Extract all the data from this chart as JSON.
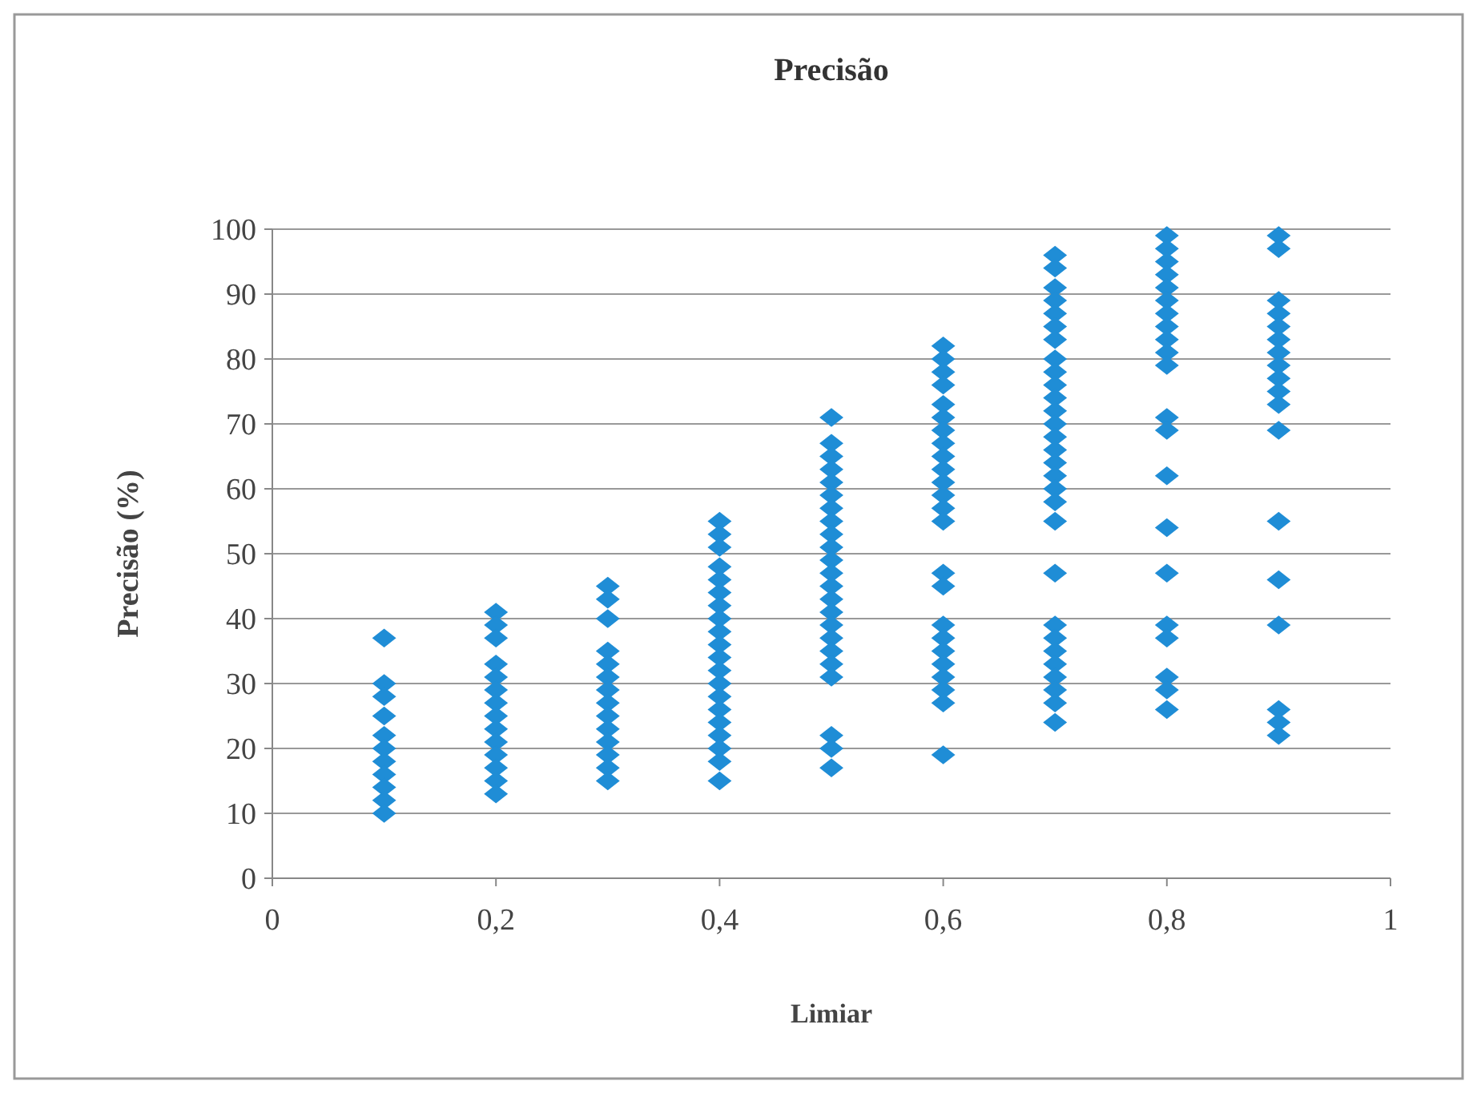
{
  "chart_data": {
    "type": "scatter",
    "title": "Precisão",
    "xlabel": "Limiar",
    "ylabel": "Precisão (%)",
    "xlim": [
      0,
      1
    ],
    "xticks": [
      0,
      {
        "value": 0.2,
        "label": "0,2"
      },
      {
        "value": 0.4,
        "label": "0,4"
      },
      {
        "value": 0.6,
        "label": "0,6"
      },
      {
        "value": 0.8,
        "label": "0,8"
      },
      1
    ],
    "ylim": [
      0,
      100
    ],
    "yticks": [
      0,
      10,
      20,
      30,
      40,
      50,
      60,
      70,
      80,
      90,
      100
    ],
    "grid": "y",
    "marker": "diamond",
    "series": [
      {
        "color": "#1f8dd6",
        "x": [
          0.1,
          0.1,
          0.1,
          0.1,
          0.1,
          0.1,
          0.1,
          0.1,
          0.1,
          0.1,
          0.1
        ],
        "values": [
          37,
          30,
          28,
          25,
          22,
          20,
          18,
          16,
          14,
          12,
          10
        ]
      },
      {
        "color": "#1f8dd6",
        "x": [
          0.2,
          0.2,
          0.2,
          0.2,
          0.2,
          0.2,
          0.2,
          0.2,
          0.2,
          0.2,
          0.2,
          0.2,
          0.2,
          0.2
        ],
        "values": [
          41,
          39,
          37,
          33,
          31,
          29,
          27,
          25,
          23,
          21,
          19,
          17,
          15,
          13
        ]
      },
      {
        "color": "#1f8dd6",
        "x": [
          0.3,
          0.3,
          0.3,
          0.3,
          0.3,
          0.3,
          0.3,
          0.3,
          0.3,
          0.3,
          0.3,
          0.3,
          0.3,
          0.3
        ],
        "values": [
          45,
          43,
          40,
          35,
          33,
          31,
          29,
          27,
          25,
          23,
          21,
          19,
          17,
          15
        ]
      },
      {
        "color": "#1f8dd6",
        "x": [
          0.4,
          0.4,
          0.4,
          0.4,
          0.4,
          0.4,
          0.4,
          0.4,
          0.4,
          0.4,
          0.4,
          0.4,
          0.4,
          0.4,
          0.4,
          0.4,
          0.4,
          0.4,
          0.4,
          0.4
        ],
        "values": [
          55,
          53,
          51,
          48,
          46,
          44,
          42,
          40,
          38,
          36,
          34,
          32,
          30,
          28,
          26,
          24,
          22,
          20,
          18,
          15
        ]
      },
      {
        "color": "#1f8dd6",
        "x": [
          0.5,
          0.5,
          0.5,
          0.5,
          0.5,
          0.5,
          0.5,
          0.5,
          0.5,
          0.5,
          0.5,
          0.5,
          0.5,
          0.5,
          0.5,
          0.5,
          0.5,
          0.5,
          0.5,
          0.5,
          0.5,
          0.5,
          0.5
        ],
        "values": [
          71,
          67,
          65,
          63,
          61,
          59,
          57,
          55,
          53,
          51,
          49,
          47,
          45,
          43,
          41,
          39,
          37,
          35,
          33,
          31,
          22,
          20,
          17
        ]
      },
      {
        "color": "#1f8dd6",
        "x": [
          0.6,
          0.6,
          0.6,
          0.6,
          0.6,
          0.6,
          0.6,
          0.6,
          0.6,
          0.6,
          0.6,
          0.6,
          0.6,
          0.6,
          0.6,
          0.6,
          0.6,
          0.6,
          0.6,
          0.6,
          0.6,
          0.6,
          0.6,
          0.6
        ],
        "values": [
          82,
          80,
          78,
          76,
          73,
          71,
          69,
          67,
          65,
          63,
          61,
          59,
          57,
          55,
          47,
          45,
          39,
          37,
          35,
          33,
          31,
          29,
          27,
          19
        ]
      },
      {
        "color": "#1f8dd6",
        "x": [
          0.7,
          0.7,
          0.7,
          0.7,
          0.7,
          0.7,
          0.7,
          0.7,
          0.7,
          0.7,
          0.7,
          0.7,
          0.7,
          0.7,
          0.7,
          0.7,
          0.7,
          0.7,
          0.7,
          0.7,
          0.7,
          0.7,
          0.7,
          0.7,
          0.7,
          0.7,
          0.7,
          0.7,
          0.7
        ],
        "values": [
          96,
          94,
          91,
          89,
          87,
          85,
          83,
          80,
          78,
          76,
          74,
          72,
          70,
          68,
          66,
          64,
          62,
          60,
          58,
          55,
          47,
          39,
          37,
          35,
          33,
          31,
          29,
          27,
          24
        ]
      },
      {
        "color": "#1f8dd6",
        "x": [
          0.8,
          0.8,
          0.8,
          0.8,
          0.8,
          0.8,
          0.8,
          0.8,
          0.8,
          0.8,
          0.8,
          0.8,
          0.8,
          0.8,
          0.8,
          0.8,
          0.8,
          0.8,
          0.8,
          0.8,
          0.8
        ],
        "values": [
          99,
          97,
          95,
          93,
          91,
          89,
          87,
          85,
          83,
          81,
          79,
          71,
          69,
          62,
          54,
          47,
          39,
          37,
          31,
          29,
          26
        ]
      },
      {
        "color": "#1f8dd6",
        "x": [
          0.9,
          0.9,
          0.9,
          0.9,
          0.9,
          0.9,
          0.9,
          0.9,
          0.9,
          0.9,
          0.9,
          0.9,
          0.9,
          0.9,
          0.9,
          0.9,
          0.9,
          0.9
        ],
        "values": [
          99,
          97,
          89,
          87,
          85,
          83,
          81,
          79,
          77,
          75,
          73,
          69,
          55,
          46,
          39,
          26,
          24,
          22
        ]
      }
    ]
  }
}
